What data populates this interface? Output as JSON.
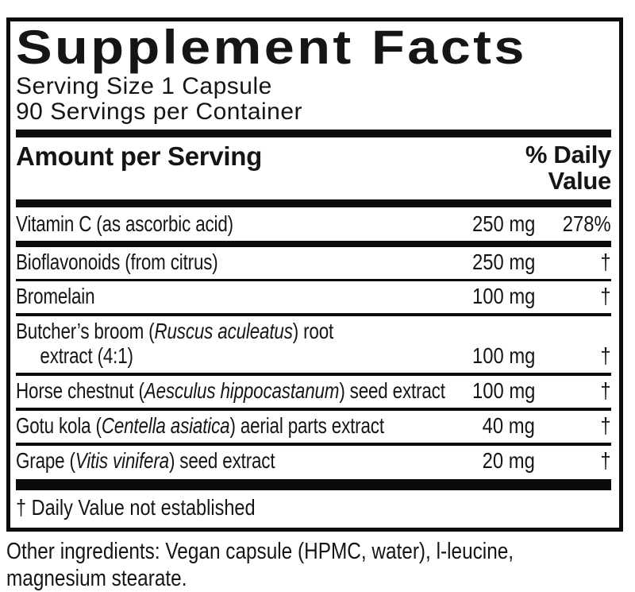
{
  "label": {
    "title": "Supplement Facts",
    "serving_size": "Serving Size 1 Capsule",
    "servings_per_container": "90 Servings per Container",
    "header": {
      "amount_label": "Amount per Serving",
      "dv_line1": "% Daily",
      "dv_line2": "Value"
    },
    "rows": [
      {
        "segments": [
          {
            "t": "Vitamin C (as ascorbic acid)"
          }
        ],
        "amount": "250 mg",
        "dv": "278%",
        "sep_after": "heavy"
      },
      {
        "segments": [
          {
            "t": "Bioflavonoids (from citrus)"
          }
        ],
        "amount": "250 mg",
        "dv": "†",
        "sep_after": "thin"
      },
      {
        "segments": [
          {
            "t": "Bromelain"
          }
        ],
        "amount": "100 mg",
        "dv": "†",
        "sep_after": "medium"
      },
      {
        "segments": [
          {
            "t": "Butcher’s broom ("
          },
          {
            "t": "Ruscus aculeatus",
            "i": true
          },
          {
            "t": ") root"
          },
          {
            "br": true
          },
          {
            "t": "extract (4:1)",
            "indent": true
          }
        ],
        "amount": "100 mg",
        "dv": "†",
        "sep_after": "medium"
      },
      {
        "segments": [
          {
            "t": "Horse chestnut ("
          },
          {
            "t": "Aesculus hippocastanum",
            "i": true
          },
          {
            "t": ") seed extract"
          }
        ],
        "amount": "100 mg",
        "dv": "†",
        "sep_after": "medium"
      },
      {
        "segments": [
          {
            "t": "Gotu kola ("
          },
          {
            "t": "Centella asiatica",
            "i": true
          },
          {
            "t": ") aerial parts extract"
          }
        ],
        "amount": "40 mg",
        "dv": "†",
        "sep_after": "medium"
      },
      {
        "segments": [
          {
            "t": "Grape ("
          },
          {
            "t": "Vitis vinifera",
            "i": true
          },
          {
            "t": ") seed extract"
          }
        ],
        "amount": "20 mg",
        "dv": "†",
        "sep_after": "footer"
      }
    ],
    "footnote": "† Daily Value not established"
  },
  "other_ingredients": {
    "lines": [
      "Other ingredients: Vegan capsule (HPMC, water), l-leucine,",
      "magnesium stearate."
    ]
  },
  "colors": {
    "ink": "#151515",
    "rule": "#0b0b0b",
    "background": "#ffffff"
  }
}
